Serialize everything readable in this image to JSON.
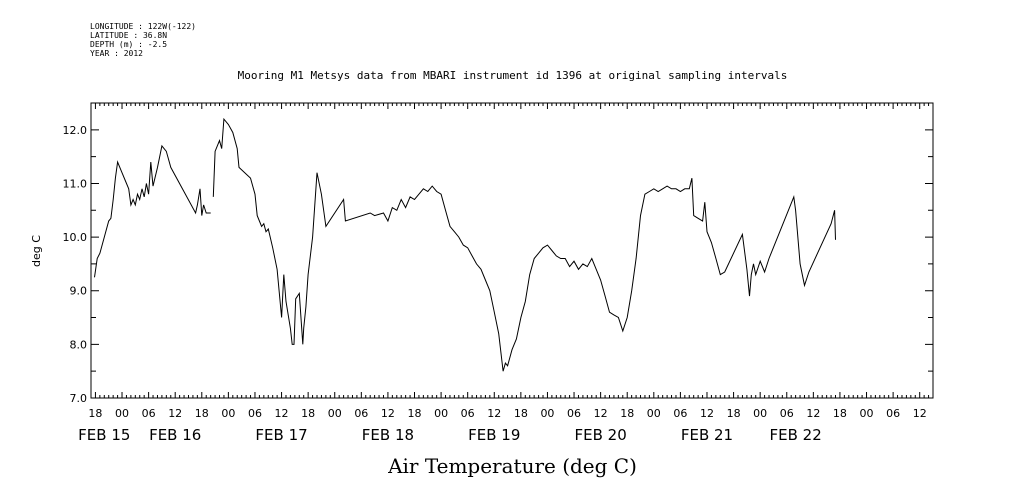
{
  "metadata": {
    "longitude": "LONGITUDE : 122W(-122)",
    "latitude": "LATITUDE : 36.8N",
    "depth": "DEPTH (m) : -2.5",
    "year": "YEAR : 2012"
  },
  "chart_data": {
    "type": "line",
    "title": "Mooring M1 Metsys data from MBARI instrument id 1396 at original sampling intervals",
    "xlabel": "Air Temperature (deg C)",
    "ylabel": "deg C",
    "ylim": [
      7.0,
      12.5
    ],
    "y_ticks": [
      "7.0",
      "8.0",
      "9.0",
      "10.0",
      "11.0",
      "12.0"
    ],
    "x_unit": "hours since FEB 15 00:00",
    "xlim": [
      -7,
      183
    ],
    "x_tick_labels": [
      {
        "x": -6,
        "label": "18"
      },
      {
        "x": 0,
        "label": "00"
      },
      {
        "x": 6,
        "label": "06"
      },
      {
        "x": 12,
        "label": "12"
      },
      {
        "x": 18,
        "label": "18"
      },
      {
        "x": 24,
        "label": "00"
      },
      {
        "x": 30,
        "label": "06"
      },
      {
        "x": 36,
        "label": "12"
      },
      {
        "x": 42,
        "label": "18"
      },
      {
        "x": 48,
        "label": "00"
      },
      {
        "x": 54,
        "label": "06"
      },
      {
        "x": 60,
        "label": "12"
      },
      {
        "x": 66,
        "label": "18"
      },
      {
        "x": 72,
        "label": "00"
      },
      {
        "x": 78,
        "label": "06"
      },
      {
        "x": 84,
        "label": "12"
      },
      {
        "x": 90,
        "label": "18"
      },
      {
        "x": 96,
        "label": "00"
      },
      {
        "x": 102,
        "label": "06"
      },
      {
        "x": 108,
        "label": "12"
      },
      {
        "x": 114,
        "label": "18"
      },
      {
        "x": 120,
        "label": "00"
      },
      {
        "x": 126,
        "label": "06"
      },
      {
        "x": 132,
        "label": "12"
      },
      {
        "x": 138,
        "label": "18"
      },
      {
        "x": 144,
        "label": "00"
      },
      {
        "x": 150,
        "label": "06"
      },
      {
        "x": 156,
        "label": "12"
      },
      {
        "x": 162,
        "label": "18"
      },
      {
        "x": 168,
        "label": "00"
      },
      {
        "x": 174,
        "label": "06"
      },
      {
        "x": 180,
        "label": "12"
      }
    ],
    "date_labels": [
      {
        "x": -4,
        "label": "FEB 15"
      },
      {
        "x": 12,
        "label": "FEB 16"
      },
      {
        "x": 36,
        "label": "FEB 17"
      },
      {
        "x": 60,
        "label": "FEB 18"
      },
      {
        "x": 84,
        "label": "FEB 19"
      },
      {
        "x": 108,
        "label": "FEB 20"
      },
      {
        "x": 132,
        "label": "FEB 21"
      },
      {
        "x": 152,
        "label": "FEB 22"
      }
    ],
    "series": [
      {
        "segments": [
          [
            [
              -6.2,
              9.25
            ],
            [
              -5.6,
              9.6
            ],
            [
              -5,
              9.7
            ],
            [
              -4,
              10.0
            ],
            [
              -3,
              10.3
            ],
            [
              -2.5,
              10.35
            ],
            [
              -2,
              10.7
            ],
            [
              -1.5,
              11.1
            ],
            [
              -1,
              11.4
            ],
            [
              0,
              11.2
            ],
            [
              1,
              11.0
            ],
            [
              1.5,
              10.9
            ],
            [
              2,
              10.6
            ],
            [
              2.5,
              10.7
            ],
            [
              3,
              10.6
            ],
            [
              3.5,
              10.8
            ],
            [
              4,
              10.7
            ],
            [
              4.5,
              10.9
            ],
            [
              5,
              10.75
            ],
            [
              5.5,
              11.0
            ],
            [
              6,
              10.8
            ],
            [
              6.5,
              11.4
            ],
            [
              7,
              10.95
            ],
            [
              8,
              11.3
            ],
            [
              9,
              11.7
            ],
            [
              10,
              11.6
            ],
            [
              11,
              11.3
            ],
            [
              16.6,
              10.45
            ],
            [
              17,
              10.6
            ],
            [
              17.6,
              10.9
            ],
            [
              18,
              10.4
            ],
            [
              18.4,
              10.6
            ],
            [
              19,
              10.45
            ],
            [
              20,
              10.45
            ]
          ],
          [
            [
              20.6,
              10.75
            ],
            [
              21,
              11.6
            ],
            [
              22,
              11.8
            ],
            [
              22.5,
              11.65
            ],
            [
              23,
              12.2
            ],
            [
              24,
              12.1
            ],
            [
              25,
              11.95
            ],
            [
              26,
              11.65
            ],
            [
              26.4,
              11.3
            ],
            [
              29,
              11.1
            ],
            [
              30,
              10.8
            ],
            [
              30.5,
              10.4
            ],
            [
              31,
              10.3
            ],
            [
              31.5,
              10.2
            ],
            [
              32,
              10.25
            ],
            [
              32.5,
              10.1
            ],
            [
              33,
              10.15
            ],
            [
              34,
              9.8
            ],
            [
              35,
              9.4
            ],
            [
              36,
              8.5
            ],
            [
              36.5,
              9.3
            ],
            [
              37,
              8.8
            ],
            [
              38,
              8.3
            ],
            [
              38.4,
              8.0
            ],
            [
              38.8,
              8.0
            ],
            [
              39.2,
              8.85
            ],
            [
              40,
              8.95
            ],
            [
              40.8,
              8.0
            ],
            [
              41,
              8.3
            ],
            [
              41.5,
              8.7
            ],
            [
              42,
              9.3
            ],
            [
              43,
              10.0
            ],
            [
              44,
              11.2
            ],
            [
              45,
              10.8
            ],
            [
              46,
              10.2
            ],
            [
              50,
              10.7
            ],
            [
              50.4,
              10.3
            ],
            [
              56,
              10.45
            ],
            [
              57,
              10.4
            ],
            [
              59,
              10.45
            ],
            [
              60,
              10.3
            ],
            [
              61,
              10.55
            ],
            [
              62,
              10.5
            ],
            [
              63,
              10.7
            ],
            [
              64,
              10.55
            ],
            [
              65,
              10.75
            ],
            [
              66,
              10.7
            ],
            [
              67,
              10.8
            ],
            [
              68,
              10.9
            ],
            [
              69,
              10.85
            ],
            [
              70,
              10.95
            ],
            [
              71,
              10.85
            ],
            [
              72,
              10.8
            ],
            [
              73,
              10.5
            ],
            [
              74,
              10.2
            ],
            [
              75,
              10.1
            ],
            [
              76,
              10.0
            ],
            [
              77,
              9.85
            ],
            [
              78,
              9.8
            ],
            [
              79,
              9.65
            ],
            [
              80,
              9.5
            ],
            [
              81,
              9.4
            ],
            [
              82,
              9.2
            ],
            [
              83,
              9.0
            ],
            [
              84,
              8.6
            ],
            [
              85,
              8.2
            ],
            [
              86,
              7.5
            ],
            [
              86.5,
              7.65
            ],
            [
              87,
              7.6
            ],
            [
              88,
              7.9
            ],
            [
              89,
              8.1
            ],
            [
              90,
              8.5
            ],
            [
              91,
              8.8
            ],
            [
              92,
              9.3
            ],
            [
              93,
              9.6
            ],
            [
              94,
              9.7
            ],
            [
              95,
              9.8
            ],
            [
              96,
              9.85
            ],
            [
              97,
              9.75
            ],
            [
              98,
              9.65
            ],
            [
              99,
              9.6
            ],
            [
              100,
              9.6
            ],
            [
              101,
              9.45
            ],
            [
              102,
              9.55
            ],
            [
              103,
              9.4
            ],
            [
              104,
              9.5
            ],
            [
              105,
              9.45
            ],
            [
              106,
              9.6
            ],
            [
              107,
              9.4
            ],
            [
              108,
              9.2
            ],
            [
              109,
              8.9
            ],
            [
              110,
              8.6
            ],
            [
              111,
              8.55
            ],
            [
              112,
              8.5
            ],
            [
              113,
              8.25
            ],
            [
              114,
              8.5
            ],
            [
              115,
              9.0
            ],
            [
              116,
              9.6
            ],
            [
              117,
              10.4
            ],
            [
              118,
              10.8
            ],
            [
              119,
              10.85
            ],
            [
              120,
              10.9
            ],
            [
              121,
              10.85
            ],
            [
              122,
              10.9
            ],
            [
              123,
              10.95
            ],
            [
              124,
              10.9
            ],
            [
              125,
              10.9
            ],
            [
              126,
              10.85
            ],
            [
              127,
              10.9
            ],
            [
              128,
              10.9
            ],
            [
              128.6,
              11.1
            ],
            [
              129,
              10.4
            ],
            [
              130,
              10.35
            ],
            [
              131,
              10.3
            ],
            [
              131.5,
              10.65
            ],
            [
              132,
              10.1
            ],
            [
              133,
              9.9
            ],
            [
              134,
              9.6
            ],
            [
              135,
              9.3
            ],
            [
              136,
              9.35
            ],
            [
              140,
              10.05
            ],
            [
              141,
              9.4
            ],
            [
              141.6,
              8.9
            ],
            [
              142,
              9.3
            ],
            [
              142.5,
              9.5
            ],
            [
              143,
              9.3
            ],
            [
              144,
              9.55
            ],
            [
              145,
              9.35
            ],
            [
              146,
              9.6
            ],
            [
              151.6,
              10.75
            ],
            [
              152,
              10.5
            ],
            [
              153,
              9.5
            ],
            [
              154,
              9.1
            ],
            [
              155,
              9.35
            ],
            [
              160,
              10.25
            ],
            [
              160.8,
              10.5
            ],
            [
              161,
              9.95
            ]
          ]
        ]
      }
    ]
  }
}
